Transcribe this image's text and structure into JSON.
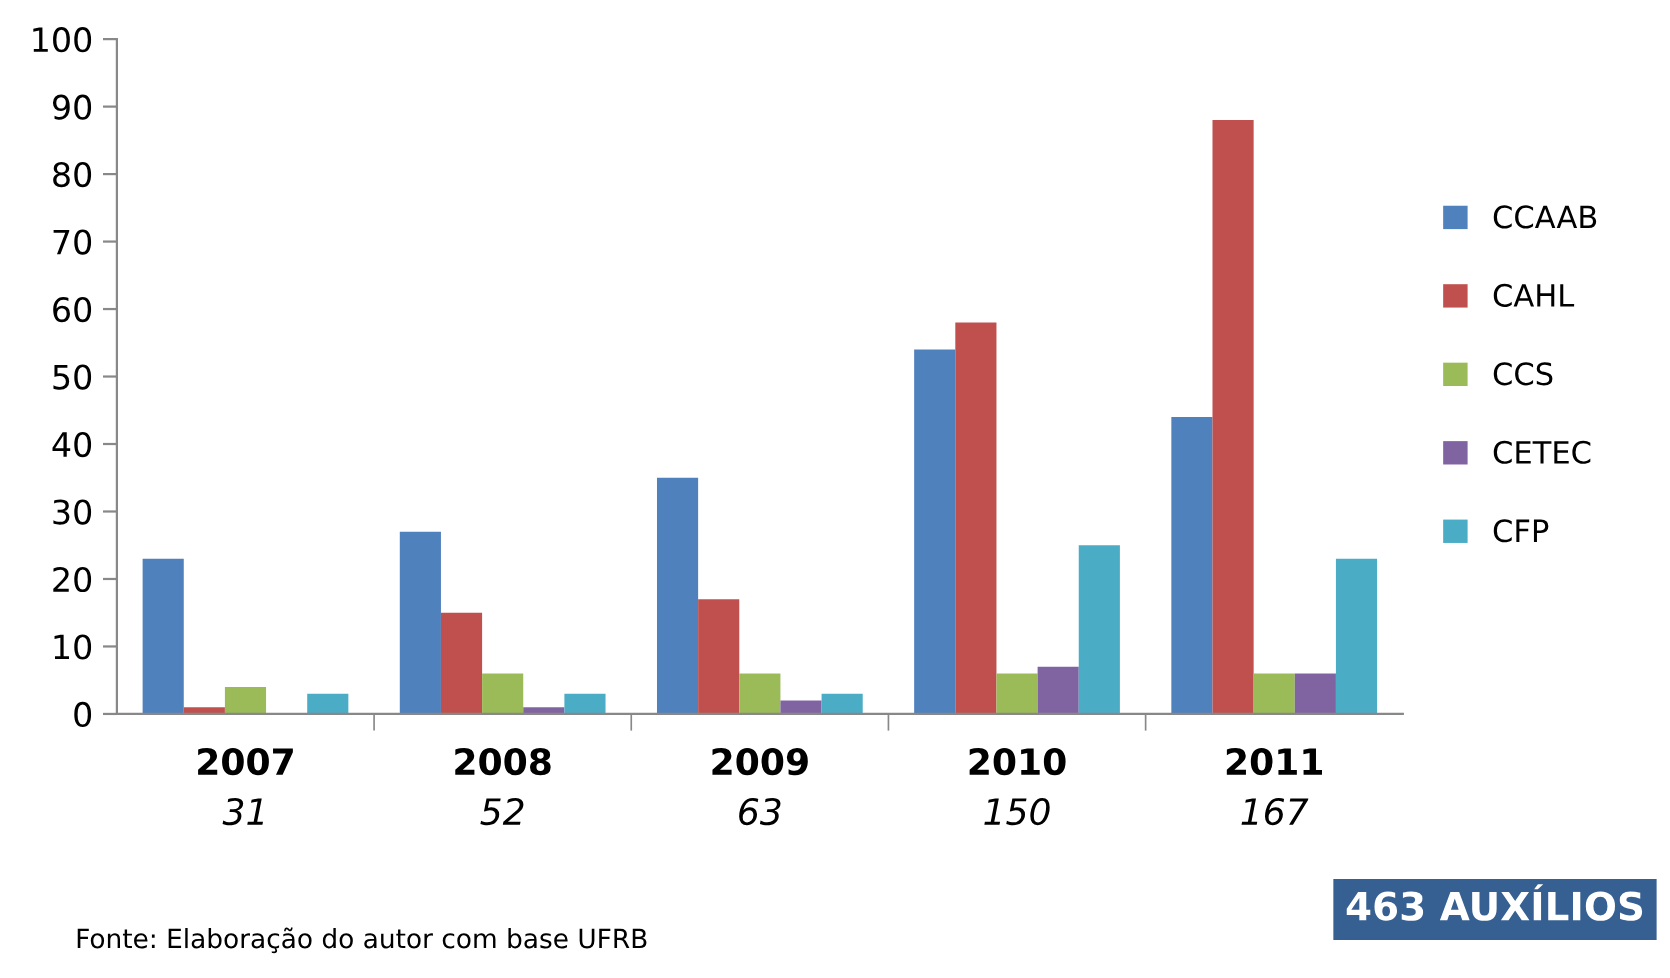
{
  "chart_data": {
    "type": "bar",
    "categories": [
      "2007",
      "2008",
      "2009",
      "2010",
      "2011"
    ],
    "series": [
      {
        "name": "CCAAB",
        "color": "#4f81bd",
        "values": [
          23,
          27,
          35,
          54,
          44
        ]
      },
      {
        "name": "CAHL",
        "color": "#c0504d",
        "values": [
          1,
          15,
          17,
          58,
          88
        ]
      },
      {
        "name": "CCS",
        "color": "#9bbb59",
        "values": [
          4,
          6,
          6,
          6,
          6
        ]
      },
      {
        "name": "CETEC",
        "color": "#8064a2",
        "values": [
          0,
          1,
          2,
          7,
          6
        ]
      },
      {
        "name": "CFP",
        "color": "#4bacc6",
        "values": [
          3,
          3,
          3,
          25,
          23
        ]
      }
    ],
    "ylim": [
      0,
      100
    ],
    "yticks": [
      0,
      10,
      20,
      30,
      40,
      50,
      60,
      70,
      80,
      90,
      100
    ],
    "grid": false,
    "legend": "right",
    "annotations": [
      "31",
      "52",
      "63",
      "150",
      "167",
      "Fonte: Elaboração do autor com base UFRB",
      "463 AUXÍLIOS"
    ]
  }
}
